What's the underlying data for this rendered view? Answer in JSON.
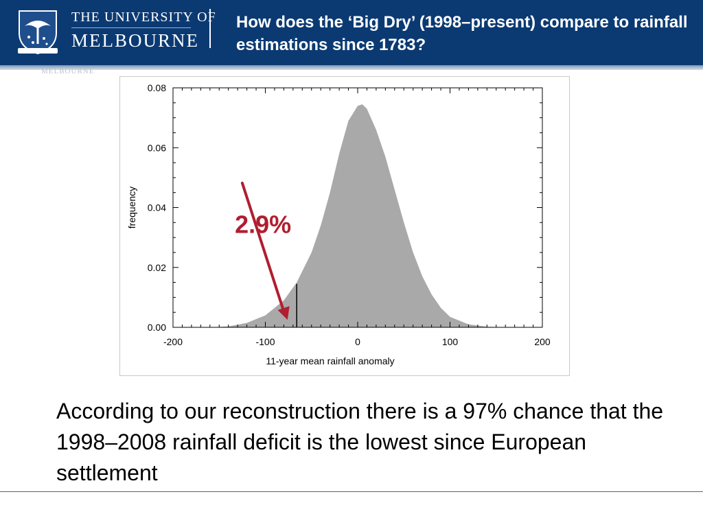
{
  "header": {
    "university_line1": "THE UNIVERSITY OF",
    "university_line2": "MELBOURNE",
    "title": "How does the ‘Big Dry’ (1998–present) compare to rainfall estimations since 1783?",
    "background_color": "#0b3a73",
    "crest_icon": "university-crest-icon"
  },
  "watermark": "MELBOURNE",
  "chart_data": {
    "type": "area",
    "xlabel": "11-year mean rainfall anomaly",
    "ylabel": "frequency",
    "xlim": [
      -200,
      200
    ],
    "ylim": [
      0,
      0.08
    ],
    "x_ticks": [
      "-200",
      "-100",
      "0",
      "100",
      "200"
    ],
    "y_ticks": [
      "0.00",
      "0.02",
      "0.04",
      "0.06",
      "0.08"
    ],
    "fill_color": "#a9a9a9",
    "x": [
      -200,
      -180,
      -160,
      -140,
      -120,
      -100,
      -80,
      -66,
      -50,
      -40,
      -30,
      -20,
      -10,
      0,
      5,
      10,
      20,
      30,
      40,
      50,
      60,
      70,
      80,
      90,
      100,
      120,
      140,
      160,
      180,
      200
    ],
    "y": [
      0.0,
      0.0,
      0.0,
      0.0003,
      0.0015,
      0.004,
      0.009,
      0.015,
      0.025,
      0.034,
      0.045,
      0.058,
      0.069,
      0.074,
      0.0745,
      0.073,
      0.066,
      0.057,
      0.046,
      0.035,
      0.025,
      0.017,
      0.011,
      0.0065,
      0.0035,
      0.001,
      0.0002,
      0.0,
      0.0,
      0.0
    ],
    "marker_x": -66,
    "annotation": {
      "label": "2.9%",
      "color": "#b01e2f"
    }
  },
  "body_text": "According to our reconstruction there is a 97% chance that the 1998–2008 rainfall deficit is the lowest since European settlement"
}
